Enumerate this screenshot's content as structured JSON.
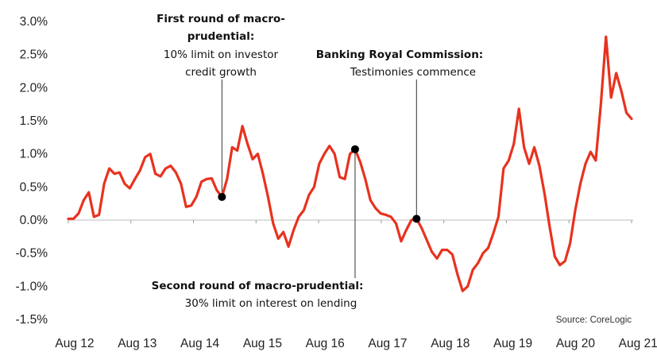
{
  "chart_data": {
    "type": "line",
    "title": "",
    "xlabel": "",
    "ylabel": "",
    "ylim": [
      -1.5,
      3.0
    ],
    "y_ticks": [
      "3.0%",
      "2.5%",
      "2.0%",
      "1.5%",
      "1.0%",
      "0.5%",
      "0.0%",
      "-0.5%",
      "-1.0%",
      "-1.5%"
    ],
    "y_tick_values": [
      3.0,
      2.5,
      2.0,
      1.5,
      1.0,
      0.5,
      0.0,
      -0.5,
      -1.0,
      -1.5
    ],
    "x_ticks": [
      "Aug 12",
      "Aug 13",
      "Aug 14",
      "Aug 15",
      "Aug 16",
      "Aug 17",
      "Aug 18",
      "Aug 19",
      "Aug 20",
      "Aug 21"
    ],
    "grid": false,
    "line_color": "#e8321e",
    "series": [
      {
        "values": [
          0.02,
          0.02,
          0.1,
          0.3,
          0.42,
          0.05,
          0.08,
          0.55,
          0.78,
          0.7,
          0.72,
          0.55,
          0.48,
          0.62,
          0.75,
          0.95,
          1.0,
          0.7,
          0.66,
          0.78,
          0.82,
          0.72,
          0.55,
          0.2,
          0.22,
          0.35,
          0.58,
          0.62,
          0.63,
          0.45,
          0.35,
          0.62,
          1.1,
          1.05,
          1.42,
          1.15,
          0.92,
          1.0,
          0.7,
          0.35,
          -0.05,
          -0.28,
          -0.18,
          -0.4,
          -0.15,
          0.05,
          0.15,
          0.38,
          0.5,
          0.85,
          1.0,
          1.12,
          1.0,
          0.65,
          0.62,
          1.0,
          1.07,
          0.88,
          0.62,
          0.3,
          0.18,
          0.1,
          0.08,
          0.05,
          -0.05,
          -0.32,
          -0.15,
          0.0,
          0.02,
          -0.12,
          -0.3,
          -0.48,
          -0.58,
          -0.45,
          -0.45,
          -0.52,
          -0.82,
          -1.07,
          -1.0,
          -0.75,
          -0.65,
          -0.5,
          -0.42,
          -0.2,
          0.05,
          0.78,
          0.9,
          1.15,
          1.68,
          1.1,
          0.85,
          1.1,
          0.82,
          0.4,
          -0.1,
          -0.55,
          -0.68,
          -0.62,
          -0.35,
          0.15,
          0.55,
          0.85,
          1.03,
          0.9,
          1.75,
          2.77,
          1.85,
          2.22,
          1.95,
          1.62,
          1.53
        ]
      }
    ],
    "markers": [
      {
        "index": 30,
        "value": 0.35
      },
      {
        "index": 56,
        "value": 1.07
      },
      {
        "index": 68,
        "value": 0.02
      }
    ],
    "annotations": [
      {
        "bold": "First round of macro-",
        "bold2": "prudential:",
        "line1": "10% limit on investor",
        "line2": "credit growth"
      },
      {
        "bold": "Banking Royal Commission:",
        "line1": "Testimonies commence"
      },
      {
        "bold": "Second round of macro-prudential:",
        "line1": "30% limit on interest on lending"
      }
    ],
    "source": "Source:  CoreLogic"
  }
}
